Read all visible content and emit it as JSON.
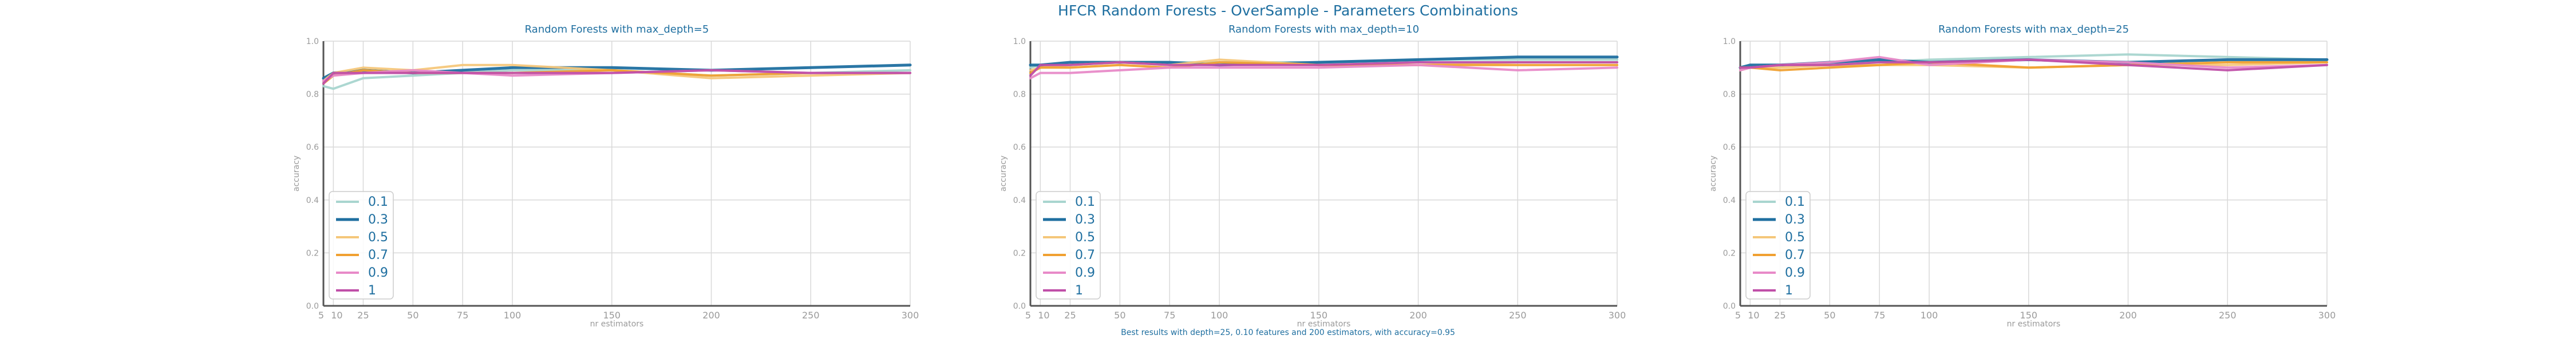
{
  "figure": {
    "suptitle": "HFCR Random Forests - OverSample - Parameters Combinations",
    "footnote": "Best results with depth=25, 0.10 features and 200 estimators, with accuracy=0.95"
  },
  "colors": {
    "title": "#1f6fa0",
    "axis_text": "#9a9a9a",
    "grid": "#d9d9d9",
    "spine": "#555555",
    "legend_text": "#1f6fa0"
  },
  "chart_data": [
    {
      "type": "line",
      "title": "Random Forests with max_depth=5",
      "xlabel": "nr estimators",
      "ylabel": "accuracy",
      "ylim": [
        0.0,
        1.0
      ],
      "xlim": [
        5,
        300
      ],
      "grid": true,
      "legend_placement": "lower-left",
      "x": [
        5,
        10,
        25,
        50,
        75,
        100,
        150,
        200,
        250,
        300
      ],
      "xticks": [
        "5",
        "10",
        "25",
        "50",
        "75",
        "100",
        "150",
        "200",
        "250",
        "300"
      ],
      "yticks": [
        "0.0",
        "0.2",
        "0.4",
        "0.6",
        "0.8",
        "1.0"
      ],
      "series": [
        {
          "name": "0.1",
          "color": "#a8d5cf",
          "values": [
            0.83,
            0.82,
            0.86,
            0.87,
            0.88,
            0.89,
            0.89,
            0.87,
            0.88,
            0.89
          ]
        },
        {
          "name": "0.3",
          "color": "#1f6fa0",
          "values": [
            0.86,
            0.88,
            0.89,
            0.88,
            0.89,
            0.9,
            0.9,
            0.89,
            0.9,
            0.91
          ]
        },
        {
          "name": "0.5",
          "color": "#f5c77a",
          "values": [
            0.85,
            0.88,
            0.9,
            0.89,
            0.91,
            0.91,
            0.89,
            0.86,
            0.87,
            0.88
          ]
        },
        {
          "name": "0.7",
          "color": "#f0a030",
          "values": [
            0.84,
            0.87,
            0.89,
            0.88,
            0.88,
            0.88,
            0.89,
            0.87,
            0.88,
            0.88
          ]
        },
        {
          "name": "0.9",
          "color": "#e88ac8",
          "values": [
            0.85,
            0.87,
            0.88,
            0.89,
            0.88,
            0.87,
            0.88,
            0.89,
            0.88,
            0.88
          ]
        },
        {
          "name": "1",
          "color": "#c04fa8",
          "values": [
            0.84,
            0.88,
            0.88,
            0.88,
            0.88,
            0.88,
            0.88,
            0.89,
            0.88,
            0.88
          ]
        }
      ]
    },
    {
      "type": "line",
      "title": "Random Forests with max_depth=10",
      "xlabel": "nr estimators",
      "ylabel": "accuracy",
      "ylim": [
        0.0,
        1.0
      ],
      "xlim": [
        5,
        300
      ],
      "grid": true,
      "legend_placement": "lower-left",
      "x": [
        5,
        10,
        25,
        50,
        75,
        100,
        150,
        200,
        250,
        300
      ],
      "xticks": [
        "5",
        "10",
        "25",
        "50",
        "75",
        "100",
        "150",
        "200",
        "250",
        "300"
      ],
      "yticks": [
        "0.0",
        "0.2",
        "0.4",
        "0.6",
        "0.8",
        "1.0"
      ],
      "series": [
        {
          "name": "0.1",
          "color": "#a8d5cf",
          "values": [
            0.9,
            0.91,
            0.91,
            0.92,
            0.92,
            0.92,
            0.92,
            0.93,
            0.93,
            0.93
          ]
        },
        {
          "name": "0.3",
          "color": "#1f6fa0",
          "values": [
            0.91,
            0.91,
            0.92,
            0.92,
            0.92,
            0.91,
            0.92,
            0.93,
            0.94,
            0.94
          ]
        },
        {
          "name": "0.5",
          "color": "#f5c77a",
          "values": [
            0.89,
            0.9,
            0.91,
            0.92,
            0.91,
            0.93,
            0.91,
            0.91,
            0.92,
            0.92
          ]
        },
        {
          "name": "0.7",
          "color": "#f0a030",
          "values": [
            0.88,
            0.9,
            0.9,
            0.91,
            0.9,
            0.92,
            0.91,
            0.91,
            0.91,
            0.91
          ]
        },
        {
          "name": "0.9",
          "color": "#e88ac8",
          "values": [
            0.86,
            0.88,
            0.88,
            0.89,
            0.9,
            0.9,
            0.9,
            0.91,
            0.89,
            0.9
          ]
        },
        {
          "name": "1",
          "color": "#c04fa8",
          "values": [
            0.87,
            0.91,
            0.91,
            0.92,
            0.91,
            0.91,
            0.91,
            0.92,
            0.92,
            0.92
          ]
        }
      ]
    },
    {
      "type": "line",
      "title": "Random Forests with max_depth=25",
      "xlabel": "nr estimators",
      "ylabel": "accuracy",
      "ylim": [
        0.0,
        1.0
      ],
      "xlim": [
        5,
        300
      ],
      "grid": true,
      "legend_placement": "lower-left",
      "x": [
        5,
        10,
        25,
        50,
        75,
        100,
        150,
        200,
        250,
        300
      ],
      "xticks": [
        "5",
        "10",
        "25",
        "50",
        "75",
        "100",
        "150",
        "200",
        "250",
        "300"
      ],
      "yticks": [
        "0.0",
        "0.2",
        "0.4",
        "0.6",
        "0.8",
        "1.0"
      ],
      "series": [
        {
          "name": "0.1",
          "color": "#a8d5cf",
          "values": [
            0.9,
            0.9,
            0.91,
            0.92,
            0.92,
            0.93,
            0.94,
            0.95,
            0.94,
            0.93
          ]
        },
        {
          "name": "0.3",
          "color": "#1f6fa0",
          "values": [
            0.9,
            0.91,
            0.91,
            0.92,
            0.93,
            0.92,
            0.93,
            0.92,
            0.93,
            0.93
          ]
        },
        {
          "name": "0.5",
          "color": "#f5c77a",
          "values": [
            0.89,
            0.9,
            0.9,
            0.91,
            0.91,
            0.91,
            0.9,
            0.91,
            0.91,
            0.92
          ]
        },
        {
          "name": "0.7",
          "color": "#f0a030",
          "values": [
            0.9,
            0.9,
            0.89,
            0.9,
            0.91,
            0.92,
            0.9,
            0.91,
            0.92,
            0.92
          ]
        },
        {
          "name": "0.9",
          "color": "#e88ac8",
          "values": [
            0.89,
            0.9,
            0.91,
            0.92,
            0.94,
            0.91,
            0.93,
            0.92,
            0.9,
            0.91
          ]
        },
        {
          "name": "1",
          "color": "#c04fa8",
          "values": [
            0.9,
            0.9,
            0.91,
            0.91,
            0.92,
            0.92,
            0.93,
            0.91,
            0.89,
            0.91
          ]
        }
      ]
    }
  ]
}
